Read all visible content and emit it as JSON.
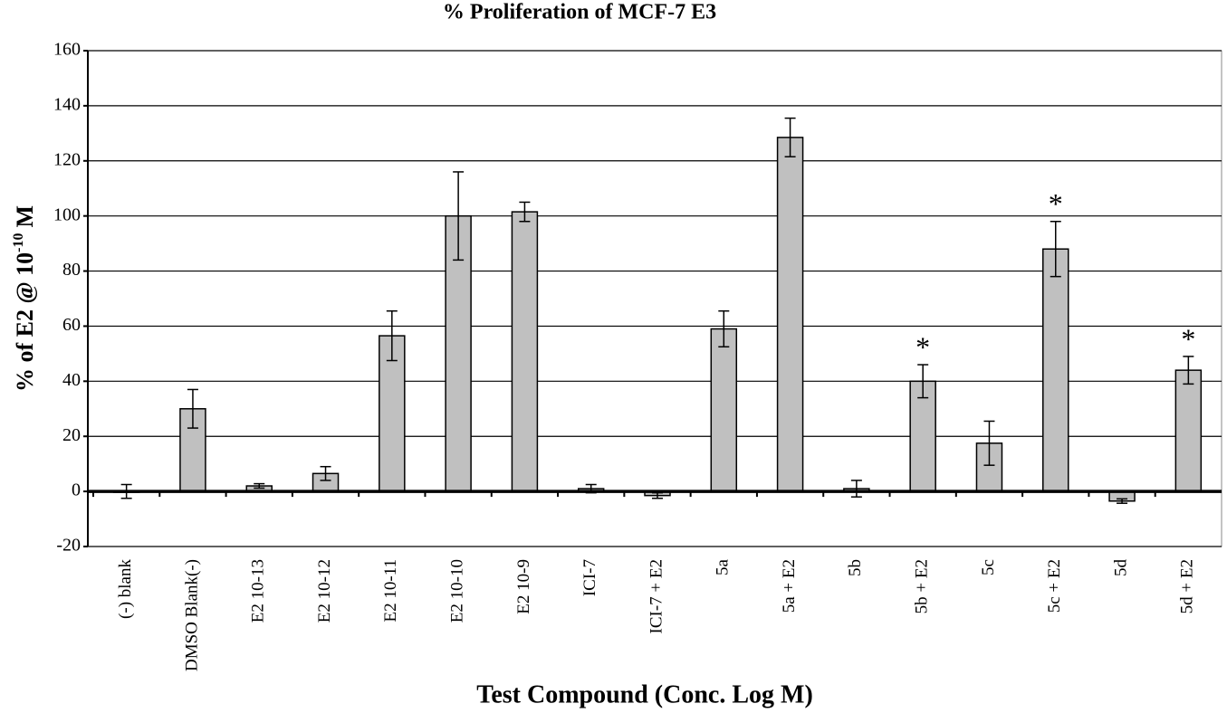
{
  "chart_data": {
    "type": "bar",
    "title": "% Proliferation of MCF-7 E3",
    "x_label": "Test Compound (Conc. Log M)",
    "y_label": "% of E2 @ 10",
    "y_label_exponent": "-10",
    "y_label_unit": "M",
    "categories": [
      "(-) blank",
      "DMSO Blank(-)",
      "E2 10-13",
      "E2 10-12",
      "E2 10-11",
      "E2 10-10",
      "E2 10-9",
      "ICI-7",
      "ICI-7 + E2",
      "5a",
      "5a + E2",
      "5b",
      "5b + E2",
      "5c",
      "5c + E2",
      "5d",
      "5d + E2"
    ],
    "values": [
      0,
      30,
      2,
      6.5,
      56.5,
      100,
      101.5,
      1,
      -1.5,
      59,
      128.5,
      1,
      40,
      17.5,
      88,
      -3.5,
      44
    ],
    "errors": [
      2.5,
      7,
      0.8,
      2.5,
      9,
      16,
      3.5,
      1.5,
      1,
      6.5,
      7,
      3,
      6,
      8,
      10,
      0.8,
      5
    ],
    "significance": [
      null,
      null,
      null,
      null,
      null,
      null,
      null,
      null,
      null,
      null,
      null,
      null,
      "*",
      null,
      "*",
      null,
      "*"
    ],
    "color": "#c0c0c0",
    "ylim": [
      -20,
      160
    ],
    "yticks": [
      -20,
      0,
      20,
      40,
      60,
      80,
      100,
      120,
      140,
      160
    ],
    "grid": true
  }
}
